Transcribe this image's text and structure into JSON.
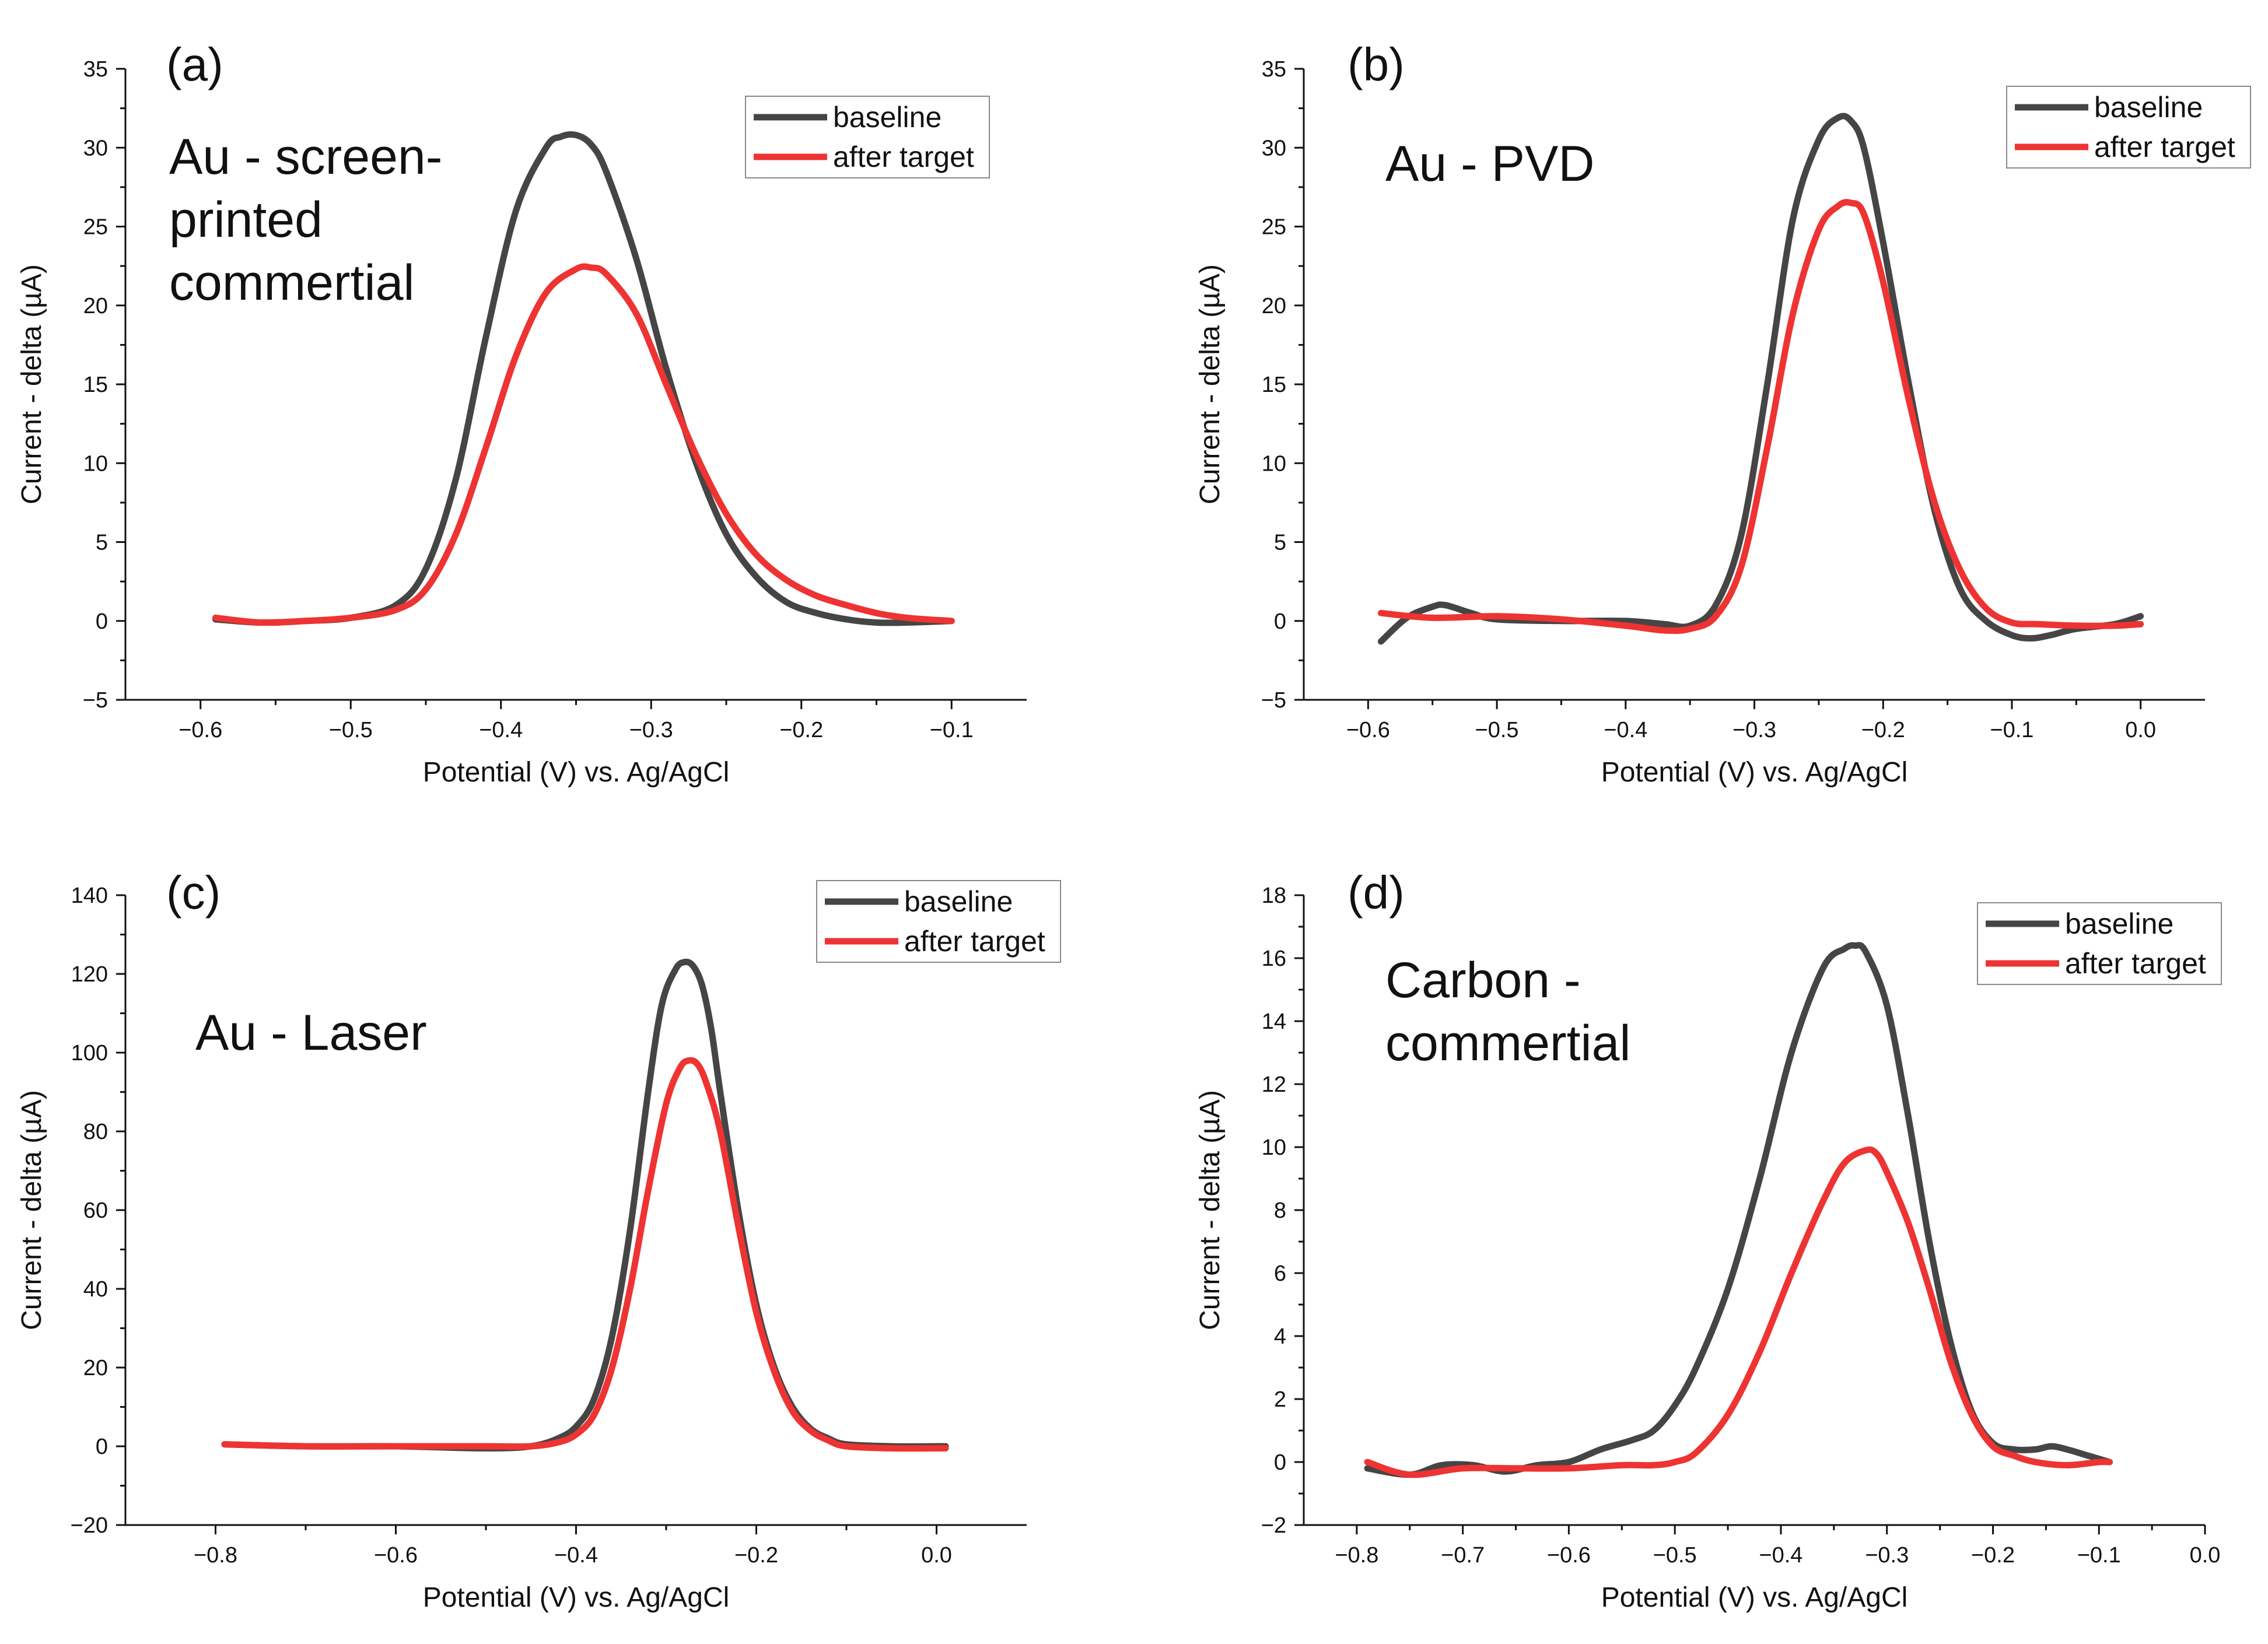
{
  "colors": {
    "baseline": "#454545",
    "after_target": "#ee3333"
  },
  "chart_data": [
    {
      "type": "line",
      "panel_label": "(a)",
      "title_lines": [
        "Au - screen-",
        "printed",
        "commertial"
      ],
      "xlabel": "Potential (V) vs. Ag/AgCl",
      "ylabel": "Current - delta (µA)",
      "xlim": [
        -0.65,
        -0.05
      ],
      "ylim": [
        -5,
        35
      ],
      "xticks": [
        -0.6,
        -0.5,
        -0.4,
        -0.3,
        -0.2,
        -0.1
      ],
      "xtick_labels": [
        "−0.6",
        "−0.5",
        "−0.4",
        "−0.3",
        "−0.2",
        "−0.1"
      ],
      "yticks": [
        -5,
        0,
        5,
        10,
        15,
        20,
        25,
        30,
        35
      ],
      "ytick_labels": [
        "−5",
        "0",
        "5",
        "10",
        "15",
        "20",
        "25",
        "30",
        "35"
      ],
      "legend": [
        "baseline",
        "after target"
      ],
      "series": [
        {
          "name": "baseline",
          "x": [
            -0.59,
            -0.56,
            -0.53,
            -0.5,
            -0.47,
            -0.45,
            -0.43,
            -0.41,
            -0.39,
            -0.37,
            -0.36,
            -0.35,
            -0.34,
            -0.33,
            -0.31,
            -0.29,
            -0.27,
            -0.25,
            -0.23,
            -0.21,
            -0.19,
            -0.17,
            -0.15,
            -0.13,
            -0.1
          ],
          "y": [
            0.1,
            -0.1,
            0.0,
            0.2,
            1.0,
            3.3,
            9.0,
            18.0,
            26.0,
            30.0,
            30.7,
            30.8,
            30.2,
            28.5,
            23.0,
            16.0,
            10.0,
            5.5,
            2.8,
            1.2,
            0.5,
            0.1,
            -0.1,
            -0.1,
            0.0
          ]
        },
        {
          "name": "after target",
          "x": [
            -0.59,
            -0.56,
            -0.53,
            -0.5,
            -0.47,
            -0.45,
            -0.43,
            -0.41,
            -0.39,
            -0.37,
            -0.35,
            -0.34,
            -0.33,
            -0.31,
            -0.29,
            -0.27,
            -0.25,
            -0.23,
            -0.21,
            -0.19,
            -0.17,
            -0.15,
            -0.13,
            -0.1
          ],
          "y": [
            0.2,
            -0.1,
            0.0,
            0.2,
            0.7,
            2.0,
            5.5,
            11.0,
            16.8,
            20.8,
            22.3,
            22.4,
            22.0,
            19.5,
            15.0,
            10.5,
            6.8,
            4.2,
            2.6,
            1.6,
            1.0,
            0.5,
            0.2,
            0.0
          ]
        }
      ]
    },
    {
      "type": "line",
      "panel_label": "(b)",
      "title_lines": [
        "Au - PVD"
      ],
      "xlabel": "Potential (V) vs. Ag/AgCl",
      "ylabel": "Current - delta (µA)",
      "xlim": [
        -0.65,
        0.05
      ],
      "ylim": [
        -5,
        35
      ],
      "xticks": [
        -0.6,
        -0.5,
        -0.4,
        -0.3,
        -0.2,
        -0.1,
        0.0
      ],
      "xtick_labels": [
        "−0.6",
        "−0.5",
        "−0.4",
        "−0.3",
        "−0.2",
        "−0.1",
        "0.0"
      ],
      "yticks": [
        -5,
        0,
        5,
        10,
        15,
        20,
        25,
        30,
        35
      ],
      "ytick_labels": [
        "−5",
        "0",
        "5",
        "10",
        "15",
        "20",
        "25",
        "30",
        "35"
      ],
      "legend": [
        "baseline",
        "after target"
      ],
      "series": [
        {
          "name": "baseline",
          "x": [
            -0.59,
            -0.57,
            -0.55,
            -0.54,
            -0.52,
            -0.5,
            -0.45,
            -0.4,
            -0.37,
            -0.35,
            -0.33,
            -0.31,
            -0.29,
            -0.27,
            -0.25,
            -0.235,
            -0.225,
            -0.215,
            -0.2,
            -0.18,
            -0.16,
            -0.14,
            -0.12,
            -0.1,
            -0.085,
            -0.07,
            -0.05,
            -0.02,
            0.0
          ],
          "y": [
            -1.3,
            0.2,
            0.9,
            1.0,
            0.5,
            0.1,
            0.0,
            0.0,
            -0.2,
            -0.3,
            1.0,
            5.5,
            15.0,
            25.5,
            30.5,
            31.9,
            31.7,
            30.0,
            24.0,
            15.0,
            7.0,
            2.0,
            0.0,
            -0.9,
            -1.1,
            -0.9,
            -0.5,
            -0.2,
            0.3
          ]
        },
        {
          "name": "after target",
          "x": [
            -0.59,
            -0.55,
            -0.5,
            -0.45,
            -0.4,
            -0.37,
            -0.35,
            -0.33,
            -0.31,
            -0.29,
            -0.27,
            -0.25,
            -0.235,
            -0.225,
            -0.215,
            -0.2,
            -0.18,
            -0.16,
            -0.14,
            -0.12,
            -0.1,
            -0.08,
            -0.05,
            -0.02,
            0.0
          ],
          "y": [
            0.5,
            0.2,
            0.3,
            0.1,
            -0.3,
            -0.6,
            -0.5,
            0.3,
            3.5,
            11.0,
            19.5,
            24.8,
            26.3,
            26.5,
            25.8,
            21.5,
            14.0,
            7.5,
            3.2,
            0.8,
            -0.1,
            -0.2,
            -0.3,
            -0.3,
            -0.2
          ]
        }
      ]
    },
    {
      "type": "line",
      "panel_label": "(c)",
      "title_lines": [
        "Au - Laser"
      ],
      "xlabel": "Potential (V) vs. Ag/AgCl",
      "ylabel": "Current - delta (µA)",
      "xlim": [
        -0.9,
        0.1
      ],
      "ylim": [
        -20,
        140
      ],
      "xticks": [
        -0.8,
        -0.6,
        -0.4,
        -0.2,
        0.0
      ],
      "xtick_labels": [
        "−0.8",
        "−0.6",
        "−0.4",
        "−0.2",
        "0.0"
      ],
      "yticks": [
        -20,
        0,
        20,
        40,
        60,
        80,
        100,
        120,
        140
      ],
      "ytick_labels": [
        "−20",
        "0",
        "20",
        "40",
        "60",
        "80",
        "100",
        "120",
        "140"
      ],
      "legend": [
        "baseline",
        "after target"
      ],
      "series": [
        {
          "name": "baseline",
          "x": [
            -0.79,
            -0.7,
            -0.6,
            -0.5,
            -0.45,
            -0.42,
            -0.4,
            -0.38,
            -0.36,
            -0.34,
            -0.32,
            -0.305,
            -0.29,
            -0.28,
            -0.27,
            -0.26,
            -0.25,
            -0.24,
            -0.22,
            -0.2,
            -0.18,
            -0.16,
            -0.14,
            -0.12,
            -0.1,
            -0.05,
            0.0,
            0.01
          ],
          "y": [
            0.5,
            0.0,
            0.0,
            -0.5,
            0.0,
            2.0,
            5.0,
            12.0,
            28.0,
            55.0,
            90.0,
            112.0,
            121.0,
            123.0,
            122.0,
            117.0,
            106.0,
            90.0,
            60.0,
            36.0,
            20.0,
            10.0,
            4.5,
            2.0,
            0.5,
            0.0,
            0.0,
            0.0
          ]
        },
        {
          "name": "after target",
          "x": [
            -0.79,
            -0.7,
            -0.6,
            -0.5,
            -0.45,
            -0.42,
            -0.4,
            -0.38,
            -0.36,
            -0.34,
            -0.32,
            -0.3,
            -0.285,
            -0.275,
            -0.265,
            -0.255,
            -0.24,
            -0.22,
            -0.2,
            -0.18,
            -0.16,
            -0.14,
            -0.12,
            -0.1,
            -0.05,
            0.0,
            0.01
          ],
          "y": [
            0.5,
            0.0,
            0.0,
            0.0,
            0.0,
            1.0,
            3.0,
            8.0,
            20.0,
            40.0,
            65.0,
            87.0,
            96.0,
            98.0,
            97.0,
            92.0,
            80.0,
            56.0,
            34.0,
            19.0,
            9.0,
            4.0,
            1.5,
            0.0,
            -0.5,
            -0.5,
            -0.5
          ]
        }
      ]
    },
    {
      "type": "line",
      "panel_label": "(d)",
      "title_lines": [
        "Carbon -",
        "commertial"
      ],
      "xlabel": "Potential (V) vs. Ag/AgCl",
      "ylabel": "Current - delta (µA)",
      "xlim": [
        -0.85,
        0.0
      ],
      "ylim": [
        -2,
        18
      ],
      "xticks": [
        -0.8,
        -0.7,
        -0.6,
        -0.5,
        -0.4,
        -0.3,
        -0.2,
        -0.1,
        0.0
      ],
      "xtick_labels": [
        "−0.8",
        "−0.7",
        "−0.6",
        "−0.5",
        "−0.4",
        "−0.3",
        "−0.2",
        "−0.1",
        "0.0"
      ],
      "yticks": [
        -2,
        0,
        2,
        4,
        6,
        8,
        10,
        12,
        14,
        16,
        18
      ],
      "ytick_labels": [
        "−2",
        "0",
        "2",
        "4",
        "6",
        "8",
        "10",
        "12",
        "14",
        "16",
        "18"
      ],
      "legend": [
        "baseline",
        "after target"
      ],
      "series": [
        {
          "name": "baseline",
          "x": [
            -0.79,
            -0.75,
            -0.72,
            -0.69,
            -0.66,
            -0.63,
            -0.6,
            -0.57,
            -0.54,
            -0.52,
            -0.5,
            -0.48,
            -0.45,
            -0.42,
            -0.39,
            -0.36,
            -0.34,
            -0.33,
            -0.32,
            -0.3,
            -0.28,
            -0.26,
            -0.24,
            -0.22,
            -0.2,
            -0.18,
            -0.16,
            -0.145,
            -0.13,
            -0.11,
            -0.09
          ],
          "y": [
            -0.2,
            -0.4,
            -0.1,
            -0.1,
            -0.3,
            -0.1,
            0.0,
            0.4,
            0.7,
            1.0,
            1.8,
            3.0,
            5.5,
            9.0,
            13.0,
            15.7,
            16.3,
            16.4,
            16.2,
            14.5,
            11.0,
            7.0,
            3.8,
            1.6,
            0.6,
            0.4,
            0.4,
            0.5,
            0.4,
            0.2,
            0.0
          ]
        },
        {
          "name": "after target",
          "x": [
            -0.79,
            -0.75,
            -0.7,
            -0.65,
            -0.6,
            -0.55,
            -0.52,
            -0.5,
            -0.48,
            -0.45,
            -0.42,
            -0.39,
            -0.36,
            -0.34,
            -0.32,
            -0.31,
            -0.3,
            -0.28,
            -0.26,
            -0.24,
            -0.22,
            -0.2,
            -0.18,
            -0.16,
            -0.13,
            -0.1,
            -0.09
          ],
          "y": [
            0.0,
            -0.4,
            -0.2,
            -0.2,
            -0.2,
            -0.1,
            -0.1,
            0.0,
            0.3,
            1.5,
            3.5,
            6.0,
            8.3,
            9.5,
            9.9,
            9.8,
            9.2,
            7.6,
            5.5,
            3.2,
            1.5,
            0.5,
            0.2,
            0.0,
            -0.1,
            0.0,
            0.0
          ]
        }
      ]
    }
  ]
}
